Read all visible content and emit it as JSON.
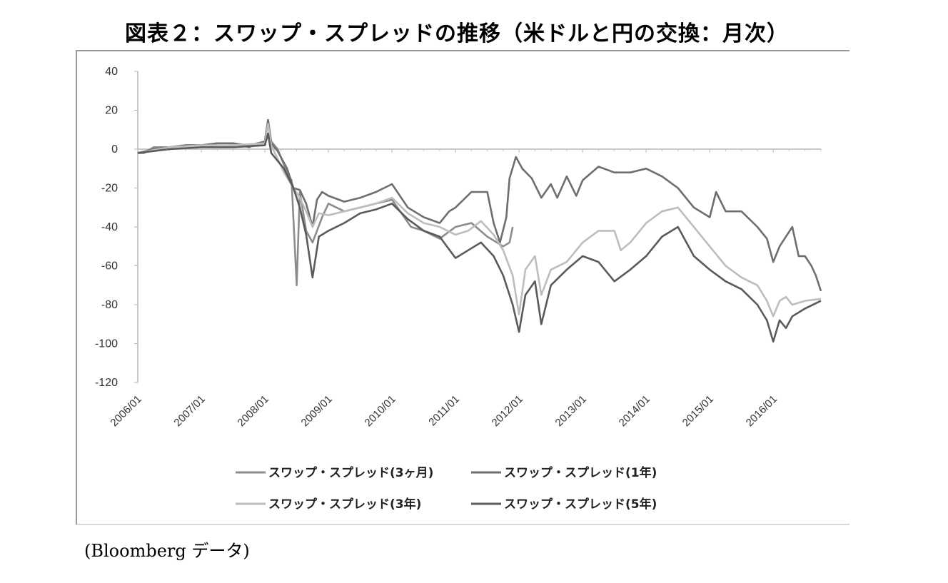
{
  "title": "図表２：スワップ・スプレッドの推移（米ドルと円の交換：月次）",
  "source": "(Bloomberg データ)",
  "chart_data": {
    "type": "line",
    "title": "図表２：スワップ・スプレッドの推移（米ドルと円の交換：月次）",
    "xlabel": "",
    "ylabel": "",
    "ylim": [
      -120,
      40
    ],
    "yticks": [
      40,
      20,
      0,
      -20,
      -40,
      -60,
      -80,
      -100,
      -120
    ],
    "xlim": [
      2006.0,
      2016.75
    ],
    "xtick_labels": [
      "2006/01",
      "2007/01",
      "2008/01",
      "2009/01",
      "2010/01",
      "2011/01",
      "2012/01",
      "2013/01",
      "2014/01",
      "2015/01",
      "2016/01"
    ],
    "legend_position": "bottom",
    "grid": false,
    "series": [
      {
        "name": "スワップ・スプレッド(3ヶ月)",
        "color": "#8c8c8c",
        "points": [
          [
            2006.0,
            -2
          ],
          [
            2006.1,
            -2
          ],
          [
            2006.25,
            1
          ],
          [
            2006.5,
            1
          ],
          [
            2006.75,
            2
          ],
          [
            2007.0,
            2
          ],
          [
            2007.25,
            3
          ],
          [
            2007.5,
            3
          ],
          [
            2007.75,
            2
          ],
          [
            2008.0,
            4
          ],
          [
            2008.05,
            15
          ],
          [
            2008.1,
            4
          ],
          [
            2008.2,
            0
          ],
          [
            2008.35,
            -12
          ],
          [
            2008.42,
            -16
          ],
          [
            2008.5,
            -70
          ],
          [
            2008.55,
            -22
          ],
          [
            2008.65,
            -42
          ],
          [
            2008.75,
            -48
          ],
          [
            2008.9,
            -35
          ],
          [
            2009.0,
            -28
          ],
          [
            2009.25,
            -32
          ],
          [
            2009.5,
            -30
          ],
          [
            2009.75,
            -28
          ],
          [
            2010.0,
            -26
          ],
          [
            2010.3,
            -40
          ],
          [
            2010.5,
            -42
          ],
          [
            2010.75,
            -46
          ],
          [
            2011.0,
            -40
          ],
          [
            2011.25,
            -38
          ],
          [
            2011.5,
            -45
          ],
          [
            2011.65,
            -48
          ],
          [
            2011.75,
            -50
          ],
          [
            2011.85,
            -48
          ],
          [
            2011.9,
            -40
          ]
        ]
      },
      {
        "name": "スワップ・スプレッド(1年)",
        "color": "#6e6e6e",
        "points": [
          [
            2006.0,
            -2
          ],
          [
            2006.25,
            0
          ],
          [
            2006.5,
            1
          ],
          [
            2006.75,
            2
          ],
          [
            2007.0,
            2
          ],
          [
            2007.25,
            3
          ],
          [
            2007.5,
            3
          ],
          [
            2007.75,
            1
          ],
          [
            2008.0,
            4
          ],
          [
            2008.05,
            15
          ],
          [
            2008.1,
            3
          ],
          [
            2008.2,
            -1
          ],
          [
            2008.35,
            -10
          ],
          [
            2008.45,
            -20
          ],
          [
            2008.55,
            -21
          ],
          [
            2008.65,
            -28
          ],
          [
            2008.75,
            -40
          ],
          [
            2008.82,
            -26
          ],
          [
            2008.9,
            -22
          ],
          [
            2009.0,
            -24
          ],
          [
            2009.25,
            -27
          ],
          [
            2009.5,
            -25
          ],
          [
            2009.75,
            -22
          ],
          [
            2010.0,
            -18
          ],
          [
            2010.25,
            -30
          ],
          [
            2010.5,
            -35
          ],
          [
            2010.75,
            -38
          ],
          [
            2010.9,
            -32
          ],
          [
            2011.0,
            -30
          ],
          [
            2011.25,
            -22
          ],
          [
            2011.5,
            -22
          ],
          [
            2011.6,
            -38
          ],
          [
            2011.7,
            -48
          ],
          [
            2011.8,
            -35
          ],
          [
            2011.85,
            -15
          ],
          [
            2011.95,
            -4
          ],
          [
            2012.05,
            -10
          ],
          [
            2012.2,
            -15
          ],
          [
            2012.35,
            -25
          ],
          [
            2012.5,
            -18
          ],
          [
            2012.6,
            -25
          ],
          [
            2012.75,
            -14
          ],
          [
            2012.9,
            -24
          ],
          [
            2013.0,
            -16
          ],
          [
            2013.25,
            -9
          ],
          [
            2013.5,
            -12
          ],
          [
            2013.75,
            -12
          ],
          [
            2014.0,
            -10
          ],
          [
            2014.25,
            -14
          ],
          [
            2014.5,
            -20
          ],
          [
            2014.75,
            -30
          ],
          [
            2015.0,
            -35
          ],
          [
            2015.1,
            -22
          ],
          [
            2015.25,
            -32
          ],
          [
            2015.5,
            -32
          ],
          [
            2015.75,
            -40
          ],
          [
            2015.9,
            -46
          ],
          [
            2016.0,
            -58
          ],
          [
            2016.1,
            -50
          ],
          [
            2016.2,
            -45
          ],
          [
            2016.3,
            -40
          ],
          [
            2016.4,
            -55
          ],
          [
            2016.5,
            -55
          ],
          [
            2016.6,
            -60
          ],
          [
            2016.67,
            -65
          ],
          [
            2016.75,
            -73
          ]
        ]
      },
      {
        "name": "スワップ・スプレッド(3年)",
        "color": "#bdbdbd",
        "points": [
          [
            2006.0,
            -2
          ],
          [
            2006.5,
            1
          ],
          [
            2007.0,
            2
          ],
          [
            2007.5,
            2
          ],
          [
            2008.0,
            3
          ],
          [
            2008.05,
            13
          ],
          [
            2008.1,
            2
          ],
          [
            2008.3,
            -12
          ],
          [
            2008.45,
            -20
          ],
          [
            2008.55,
            -25
          ],
          [
            2008.65,
            -32
          ],
          [
            2008.75,
            -40
          ],
          [
            2008.85,
            -33
          ],
          [
            2009.0,
            -34
          ],
          [
            2009.25,
            -32
          ],
          [
            2009.5,
            -30
          ],
          [
            2009.75,
            -28
          ],
          [
            2010.0,
            -25
          ],
          [
            2010.25,
            -33
          ],
          [
            2010.5,
            -38
          ],
          [
            2010.75,
            -40
          ],
          [
            2011.0,
            -44
          ],
          [
            2011.2,
            -42
          ],
          [
            2011.4,
            -37
          ],
          [
            2011.6,
            -44
          ],
          [
            2011.75,
            -52
          ],
          [
            2011.9,
            -65
          ],
          [
            2012.0,
            -85
          ],
          [
            2012.1,
            -62
          ],
          [
            2012.25,
            -55
          ],
          [
            2012.35,
            -75
          ],
          [
            2012.5,
            -62
          ],
          [
            2012.75,
            -58
          ],
          [
            2013.0,
            -48
          ],
          [
            2013.25,
            -42
          ],
          [
            2013.5,
            -42
          ],
          [
            2013.6,
            -52
          ],
          [
            2013.75,
            -48
          ],
          [
            2014.0,
            -38
          ],
          [
            2014.25,
            -32
          ],
          [
            2014.5,
            -30
          ],
          [
            2014.75,
            -40
          ],
          [
            2015.0,
            -50
          ],
          [
            2015.25,
            -60
          ],
          [
            2015.5,
            -66
          ],
          [
            2015.75,
            -70
          ],
          [
            2015.9,
            -78
          ],
          [
            2016.0,
            -86
          ],
          [
            2016.1,
            -78
          ],
          [
            2016.2,
            -76
          ],
          [
            2016.3,
            -80
          ],
          [
            2016.5,
            -78
          ],
          [
            2016.75,
            -77
          ]
        ]
      },
      {
        "name": "スワップ・スプレッド(5年)",
        "color": "#5a5a5a",
        "points": [
          [
            2006.0,
            -2
          ],
          [
            2006.5,
            0
          ],
          [
            2007.0,
            1
          ],
          [
            2007.5,
            1
          ],
          [
            2008.0,
            2
          ],
          [
            2008.05,
            8
          ],
          [
            2008.1,
            -2
          ],
          [
            2008.3,
            -10
          ],
          [
            2008.45,
            -20
          ],
          [
            2008.55,
            -30
          ],
          [
            2008.65,
            -44
          ],
          [
            2008.75,
            -66
          ],
          [
            2008.85,
            -45
          ],
          [
            2009.0,
            -42
          ],
          [
            2009.25,
            -38
          ],
          [
            2009.5,
            -33
          ],
          [
            2009.75,
            -31
          ],
          [
            2010.0,
            -28
          ],
          [
            2010.25,
            -36
          ],
          [
            2010.5,
            -42
          ],
          [
            2010.75,
            -45
          ],
          [
            2011.0,
            -56
          ],
          [
            2011.2,
            -52
          ],
          [
            2011.4,
            -48
          ],
          [
            2011.6,
            -55
          ],
          [
            2011.75,
            -65
          ],
          [
            2011.9,
            -80
          ],
          [
            2012.0,
            -94
          ],
          [
            2012.1,
            -75
          ],
          [
            2012.25,
            -68
          ],
          [
            2012.35,
            -90
          ],
          [
            2012.5,
            -70
          ],
          [
            2012.75,
            -62
          ],
          [
            2013.0,
            -55
          ],
          [
            2013.25,
            -58
          ],
          [
            2013.5,
            -68
          ],
          [
            2013.75,
            -62
          ],
          [
            2014.0,
            -55
          ],
          [
            2014.25,
            -45
          ],
          [
            2014.5,
            -40
          ],
          [
            2014.75,
            -55
          ],
          [
            2015.0,
            -62
          ],
          [
            2015.25,
            -68
          ],
          [
            2015.5,
            -72
          ],
          [
            2015.75,
            -80
          ],
          [
            2015.9,
            -88
          ],
          [
            2016.0,
            -99
          ],
          [
            2016.1,
            -88
          ],
          [
            2016.2,
            -92
          ],
          [
            2016.3,
            -86
          ],
          [
            2016.5,
            -82
          ],
          [
            2016.75,
            -78
          ]
        ]
      }
    ]
  }
}
